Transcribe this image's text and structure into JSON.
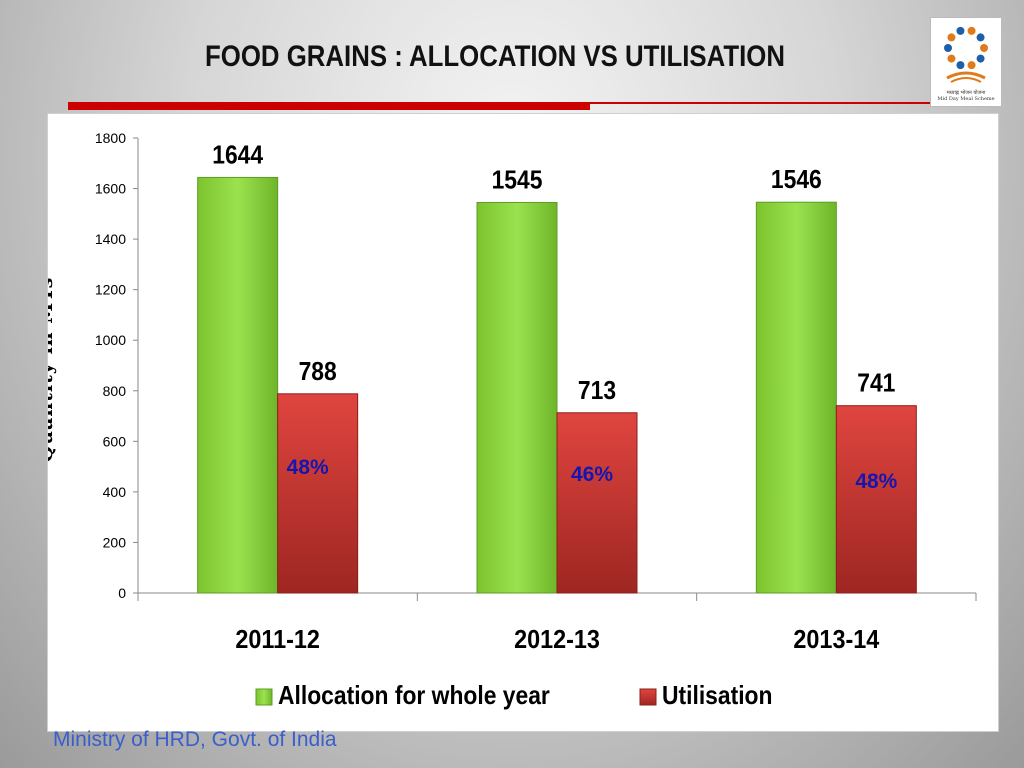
{
  "slide": {
    "title": "FOOD GRAINS : ALLOCATION VS UTILISATION",
    "footer": "Ministry of HRD, Govt. of India",
    "logo_caption_line1": "मध्याह्न भोजन योजना",
    "logo_caption_line2": "Mid Day Meal Scheme",
    "accent_color": "#cc0000",
    "logo_icon": "mid-day-meal-logo"
  },
  "chart_data": {
    "type": "bar",
    "categories": [
      "2011-12",
      "2012-13",
      "2013-14"
    ],
    "series": [
      {
        "name": "Allocation for whole year",
        "values": [
          1644,
          1545,
          1546
        ],
        "color": "#8fd43f",
        "labels": [
          "1644",
          "1545",
          "1546"
        ]
      },
      {
        "name": "Utilisation",
        "values": [
          788,
          713,
          741
        ],
        "color": "#d33a36",
        "labels": [
          "788",
          "713",
          "741"
        ]
      }
    ],
    "annotations": [
      "48%",
      "46%",
      "48%"
    ],
    "annotation_color": "#1515b0",
    "ylabel": "Quantity in MTs",
    "xlabel": "",
    "ylim": [
      0,
      1800
    ],
    "yticks": [
      0,
      200,
      400,
      600,
      800,
      1000,
      1200,
      1400,
      1600,
      1800
    ],
    "grid": false,
    "legend_position": "bottom"
  }
}
